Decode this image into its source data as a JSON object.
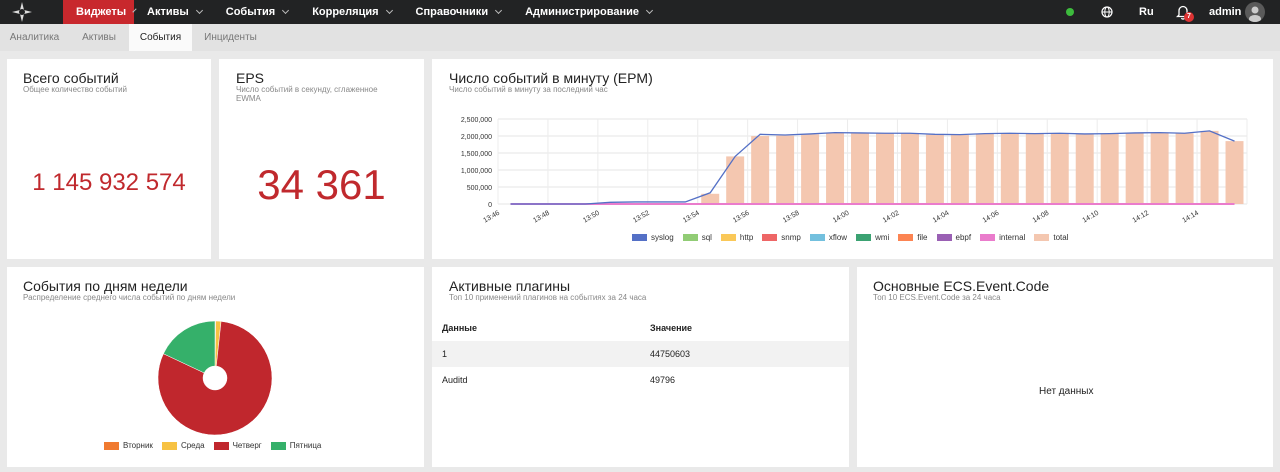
{
  "nav": {
    "logo_icon": "compass-logo-icon",
    "items": [
      {
        "label": "Виджеты",
        "active": true
      },
      {
        "label": "Активы"
      },
      {
        "label": "События"
      },
      {
        "label": "Корреляция"
      },
      {
        "label": "Справочники"
      },
      {
        "label": "Администрирование"
      }
    ],
    "status_color": "#3dbb3d",
    "lang": "Ru",
    "notification_count": "7",
    "user": "admin"
  },
  "tabs": [
    {
      "label": "Аналитика"
    },
    {
      "label": "Активы"
    },
    {
      "label": "События",
      "active": true
    },
    {
      "label": "Инциденты"
    }
  ],
  "total_events": {
    "title": "Всего событий",
    "subtitle": "Общее количество событий",
    "value": "1 145 932 574"
  },
  "eps": {
    "title": "EPS",
    "subtitle": "Число событий в секунду, сглаженное EWMA",
    "value": "34 361"
  },
  "epm": {
    "title": "Число событий в минуту (EPM)",
    "subtitle": "Число событий в минуту за последний час"
  },
  "weekday": {
    "title": "События по дням недели",
    "subtitle": "Распределение среднего числа событий по дням недели"
  },
  "plugins": {
    "title": "Активные плагины",
    "subtitle": "Топ 10 применений плагинов на событиях за 24 часа",
    "columns": [
      "Данные",
      "Значение"
    ],
    "rows": [
      [
        "1",
        "44750603"
      ],
      [
        "Auditd",
        "49796"
      ]
    ]
  },
  "ecs": {
    "title": "Основные ECS.Event.Code",
    "subtitle": "Топ 10 ECS.Event.Code за 24 часа",
    "empty": "Нет данных"
  },
  "chart_data": [
    {
      "type": "bar",
      "ylim": [
        0,
        2500000
      ],
      "yticks": [
        "0",
        "500,000",
        "1,000,000",
        "1,500,000",
        "2,000,000",
        "2,500,000"
      ],
      "ytick_values": [
        0,
        500000,
        1000000,
        1500000,
        2000000,
        2500000
      ],
      "xtick_labels": [
        "13:46",
        "13:48",
        "13:50",
        "13:52",
        "13:54",
        "13:56",
        "13:58",
        "14:00",
        "14:02",
        "14:04",
        "14:06",
        "14:08",
        "14:10",
        "14:12",
        "14:14"
      ],
      "grid": true,
      "legend_position": "bottom",
      "series_colors": {
        "syslog": "#5470c6",
        "sql": "#91cc75",
        "http": "#fac858",
        "snmp": "#ee6666",
        "xflow": "#73c0de",
        "wmi": "#3ba272",
        "file": "#fc8452",
        "ebpf": "#9a60b4",
        "internal": "#ea7ccc",
        "total": "#f4c7b0"
      },
      "series": [
        {
          "name": "syslog",
          "kind": "line",
          "values": [
            0,
            0,
            0,
            0,
            50000,
            60000,
            60000,
            60000,
            330000,
            1400000,
            2050000,
            2030000,
            2060000,
            2100000,
            2090000,
            2080000,
            2080000,
            2050000,
            2040000,
            2070000,
            2080000,
            2070000,
            2080000,
            2060000,
            2070000,
            2090000,
            2100000,
            2080000,
            2150000,
            1850000
          ]
        },
        {
          "name": "sql",
          "values": []
        },
        {
          "name": "http",
          "values": []
        },
        {
          "name": "snmp",
          "values": []
        },
        {
          "name": "xflow",
          "values": []
        },
        {
          "name": "wmi",
          "values": []
        },
        {
          "name": "file",
          "values": []
        },
        {
          "name": "ebpf",
          "values": []
        },
        {
          "name": "internal",
          "kind": "line",
          "values": [
            0,
            0,
            0,
            0,
            0,
            0,
            0,
            0,
            0,
            0,
            0,
            0,
            0,
            0,
            0,
            0,
            0,
            0,
            0,
            0,
            0,
            0,
            0,
            0,
            0,
            0,
            0,
            0,
            0,
            0
          ]
        },
        {
          "name": "total",
          "kind": "bar",
          "values": [
            0,
            0,
            0,
            0,
            0,
            0,
            0,
            0,
            300000,
            1400000,
            2000000,
            2010000,
            2050000,
            2100000,
            2090000,
            2080000,
            2080000,
            2040000,
            2030000,
            2060000,
            2080000,
            2060000,
            2080000,
            2050000,
            2060000,
            2080000,
            2100000,
            2080000,
            2150000,
            1850000
          ]
        }
      ]
    },
    {
      "type": "pie",
      "donut": true,
      "categories": [
        "Вторник",
        "Среда",
        "Четверг",
        "Пятница"
      ],
      "values": [
        0.2,
        1.5,
        80.3,
        18.0
      ],
      "colors": [
        "#f07a30",
        "#f7c243",
        "#c0272d",
        "#35b06a"
      ]
    }
  ]
}
